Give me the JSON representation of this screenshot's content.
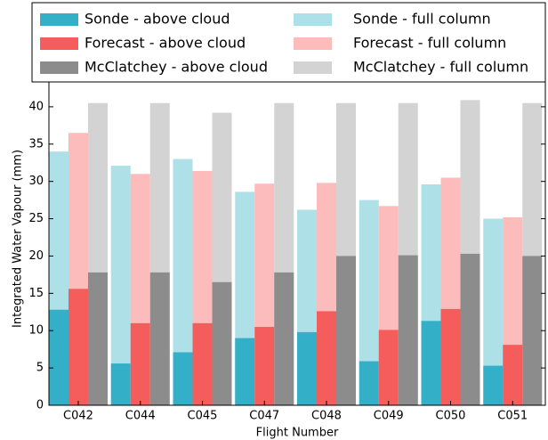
{
  "chart_data": {
    "type": "bar",
    "xlabel": "Flight Number",
    "ylabel": "Integrated Water Vapour (mm)",
    "categories": [
      "C042",
      "C044",
      "C045",
      "C047",
      "C048",
      "C049",
      "C050",
      "C051"
    ],
    "series": [
      {
        "name": "Sonde - above cloud",
        "color": "#33b0c8",
        "values": [
          12.8,
          5.6,
          7.1,
          9.0,
          9.8,
          5.9,
          11.3,
          5.3
        ]
      },
      {
        "name": "Forecast - above cloud",
        "color": "#f55d5d",
        "values": [
          15.6,
          11.0,
          11.0,
          10.5,
          12.6,
          10.1,
          12.9,
          8.1
        ]
      },
      {
        "name": "McClatchey - above cloud",
        "color": "#8c8c8c",
        "values": [
          17.8,
          17.8,
          16.5,
          17.8,
          20.0,
          20.1,
          20.3,
          20.0
        ]
      },
      {
        "name": "Sonde - full column",
        "color": "#aee0e8",
        "values": [
          34.0,
          32.1,
          33.0,
          28.6,
          26.2,
          27.5,
          29.6,
          25.0
        ]
      },
      {
        "name": "Forecast - full column",
        "color": "#fdbcbc",
        "values": [
          36.5,
          31.0,
          31.4,
          29.7,
          29.8,
          26.7,
          30.5,
          25.2
        ]
      },
      {
        "name": "McClatchey - full column",
        "color": "#d3d3d3",
        "values": [
          40.5,
          40.5,
          39.2,
          40.5,
          40.5,
          40.5,
          40.9,
          40.5
        ]
      }
    ],
    "ylim": [
      0,
      45
    ],
    "yticks": [
      0,
      5,
      10,
      15,
      20,
      25,
      30,
      35,
      40
    ],
    "legend": "top"
  }
}
